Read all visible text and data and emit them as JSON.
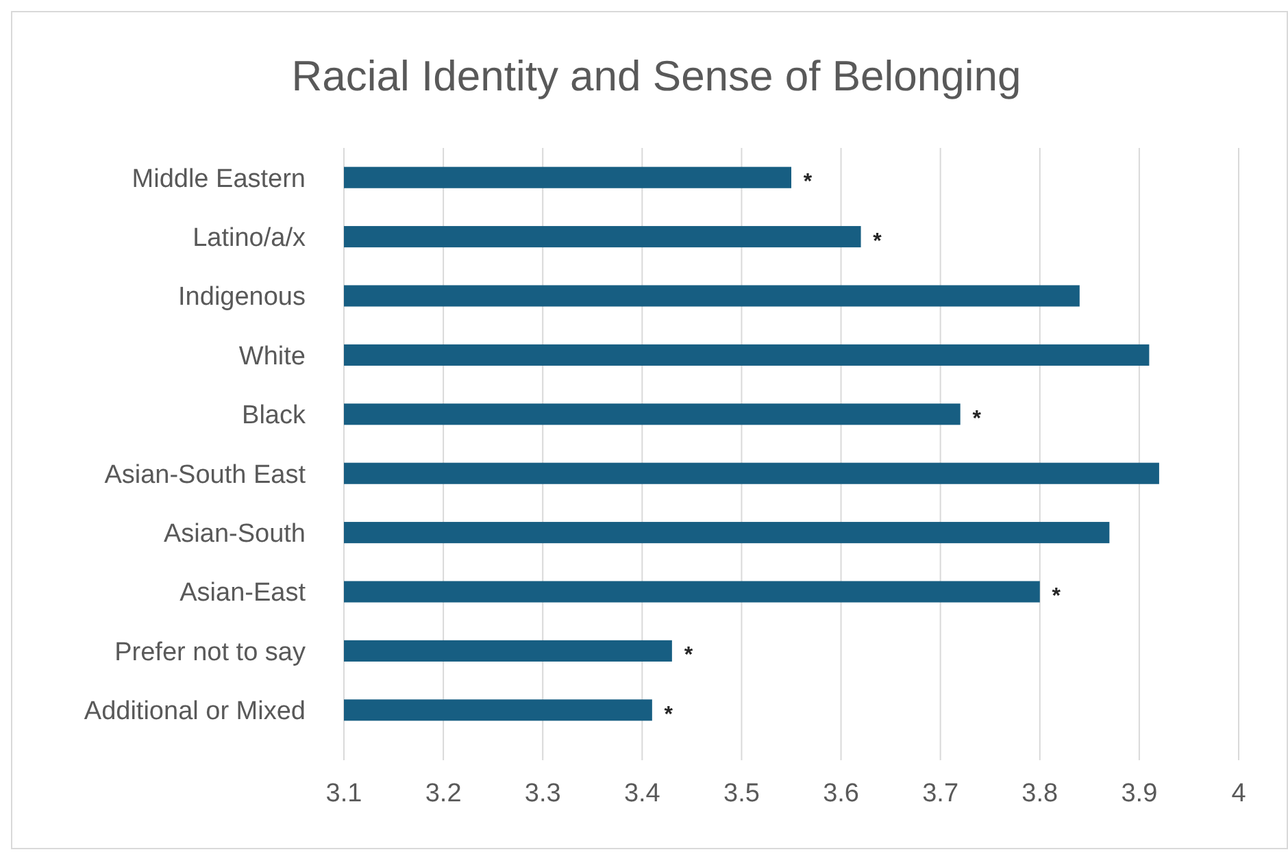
{
  "chart_data": {
    "type": "bar",
    "orientation": "horizontal",
    "title": "Racial Identity and Sense of Belonging",
    "categories": [
      "Middle Eastern",
      "Latino/a/x",
      "Indigenous",
      "White",
      "Black",
      "Asian-South East",
      "Asian-South",
      "Asian-East",
      "Prefer not to say",
      "Additional or Mixed"
    ],
    "values": [
      3.55,
      3.62,
      3.84,
      3.91,
      3.72,
      3.92,
      3.87,
      3.8,
      3.43,
      3.41
    ],
    "color": "#175e82",
    "xlim": [
      3.1,
      4
    ],
    "xticks": [
      3.1,
      3.2,
      3.3,
      3.4,
      3.5,
      3.6,
      3.7,
      3.8,
      3.9,
      4
    ],
    "grid": "x",
    "annotations": [
      {
        "text": "*",
        "x": 3.55,
        "y": "Middle Eastern"
      },
      {
        "text": "*",
        "x": 3.62,
        "y": "Latino/a/x"
      },
      {
        "text": "*",
        "x": 3.72,
        "y": "Black"
      },
      {
        "text": "*",
        "x": 3.8,
        "y": "Asian-East"
      },
      {
        "text": "*",
        "x": 3.43,
        "y": "Prefer not to say"
      },
      {
        "text": "*",
        "x": 3.41,
        "y": "Additional or Mixed"
      }
    ]
  }
}
